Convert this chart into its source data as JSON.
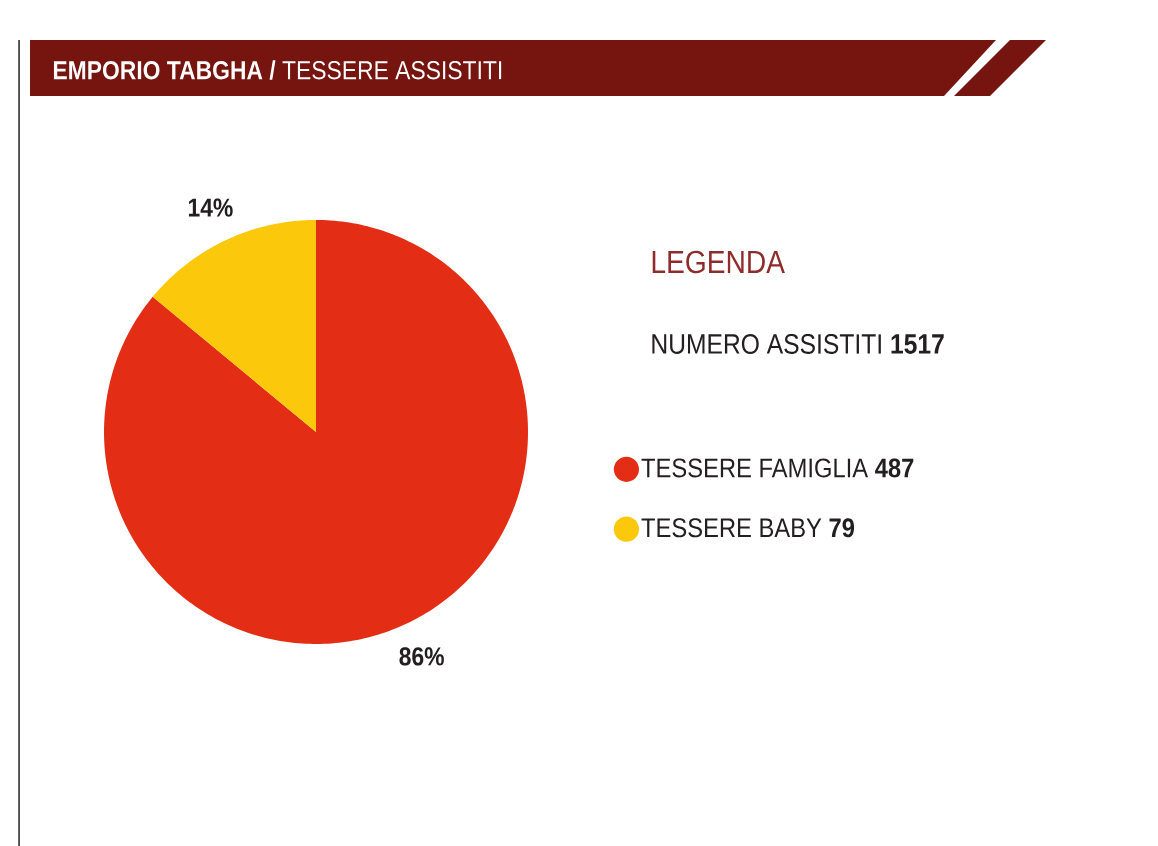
{
  "chart_data": {
    "type": "pie",
    "title": "**EMPORIO TABGHA /** TESSERE ASSISTITI",
    "categories": [
      "TESSERE FAMIGLIA **487**",
      "TESSERE BABY **79**"
    ],
    "values": [
      86,
      14
    ],
    "colors": [
      "#e42d15",
      "#fcc80b"
    ],
    "value_labels": [
      "86%",
      "14%"
    ],
    "legend": "right",
    "legend_title": "LEGENDA",
    "annotations": [
      "NUMERO ASSISTITI **1517**"
    ]
  }
}
